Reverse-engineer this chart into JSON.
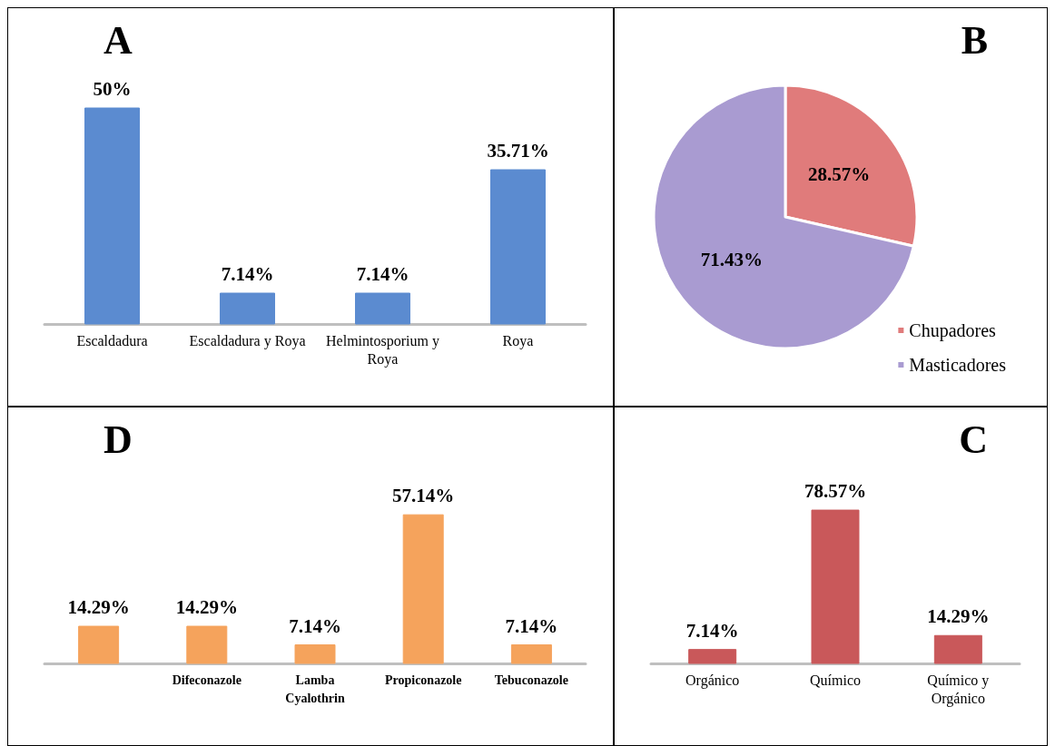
{
  "chart_data": [
    {
      "type": "bar",
      "title": "A",
      "categories": [
        "Escaldadura",
        "Escaldadura y Roya",
        "Helmintosporium y Roya",
        "Roya"
      ],
      "values": [
        50,
        7.14,
        7.14,
        35.71
      ],
      "value_labels": [
        "50%",
        "7.14%",
        "7.14%",
        "35.71%"
      ],
      "color": "#5b8bd0",
      "legend": false,
      "tick_labels": "x"
    },
    {
      "type": "pie",
      "title": "B",
      "categories": [
        "Chupadores",
        "Masticadores"
      ],
      "values": [
        28.57,
        71.43
      ],
      "colors": [
        "#e07b7b",
        "#a99bd1"
      ],
      "value_labels": [
        "28.57%",
        "71.43%"
      ],
      "legend": "bottom right"
    },
    {
      "type": "bar",
      "title": "D",
      "categories": [
        null,
        "Difeconazole",
        "Lamba Cyalothrin",
        "Propiconazole",
        "Tebuconazole"
      ],
      "values": [
        14.29,
        14.29,
        7.14,
        57.14,
        7.14
      ],
      "value_labels": [
        "14.29%",
        "14.29%",
        "7.14%",
        "57.14%",
        "7.14%"
      ],
      "color": "#f5a35c",
      "legend": false,
      "tick_labels": "x"
    },
    {
      "type": "bar",
      "title": "C",
      "categories": [
        "Orgánico",
        "Químico",
        "Químico y Orgánico"
      ],
      "values": [
        7.14,
        78.57,
        14.29
      ],
      "value_labels": [
        "7.14%",
        "78.57%",
        "14.29%"
      ],
      "color": "#c9585a",
      "legend": false,
      "tick_labels": "x"
    }
  ]
}
